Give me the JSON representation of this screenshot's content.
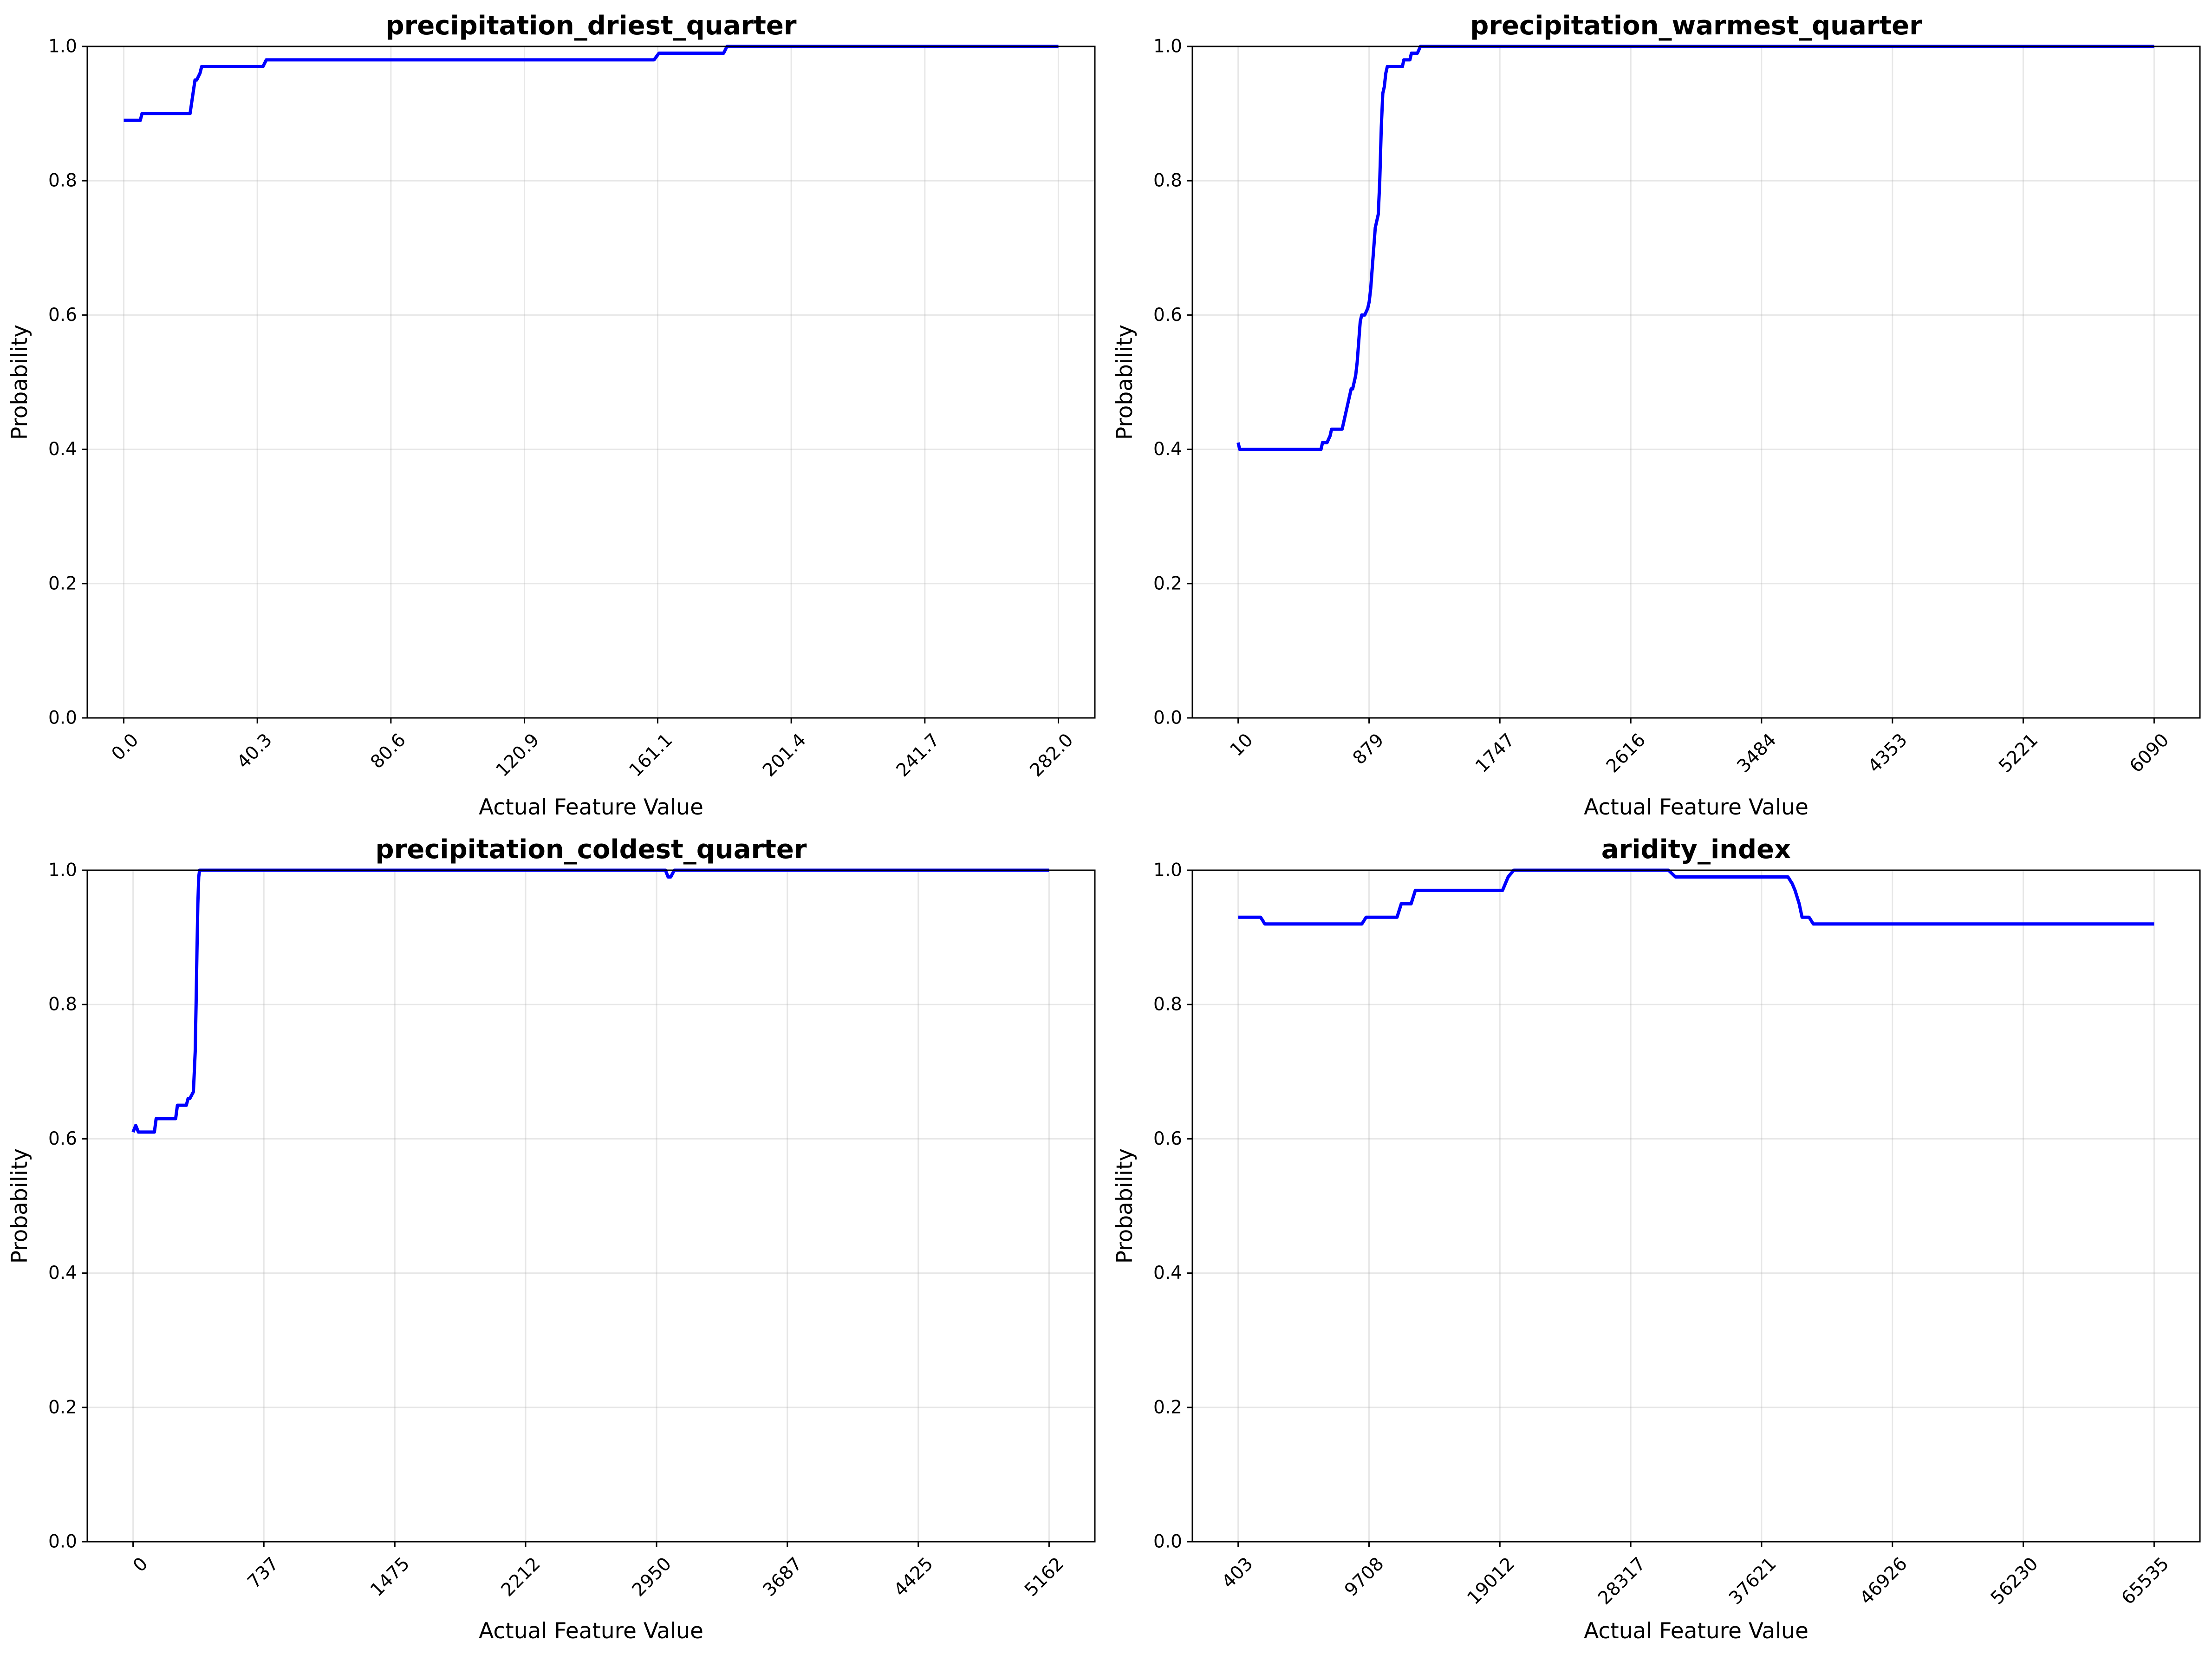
{
  "chart_data": [
    {
      "type": "line",
      "title": "precipitation_driest_quarter",
      "xlabel": "Actual Feature Value",
      "ylabel": "Probability",
      "xlim": [
        -11,
        293
      ],
      "ylim": [
        0,
        1
      ],
      "xticks": [
        0,
        40.3,
        80.6,
        120.9,
        161.1,
        201.4,
        241.7,
        282.0
      ],
      "xtick_labels": [
        "0.0",
        "40.3",
        "80.6",
        "120.9",
        "161.1",
        "201.4",
        "241.7",
        "282.0"
      ],
      "yticks": [
        0,
        0.2,
        0.4,
        0.6,
        0.8,
        1.0
      ],
      "ytick_labels": [
        "0.0",
        "0.2",
        "0.4",
        "0.6",
        "0.8",
        "1.0"
      ],
      "grid": true,
      "color": "#0000ff",
      "x": [
        0,
        5,
        5.5,
        20,
        21.5,
        22,
        23,
        23.5,
        42,
        43,
        160,
        161.5,
        181,
        182,
        282
      ],
      "y": [
        0.89,
        0.89,
        0.9,
        0.9,
        0.95,
        0.95,
        0.96,
        0.97,
        0.97,
        0.98,
        0.98,
        0.99,
        0.99,
        1.0,
        1.0
      ]
    },
    {
      "type": "line",
      "title": "precipitation_warmest_quarter",
      "xlabel": "Actual Feature Value",
      "ylabel": "Probability",
      "xlim": [
        -294,
        6394
      ],
      "ylim": [
        0,
        1
      ],
      "xticks": [
        10,
        879,
        1747,
        2616,
        3484,
        4353,
        5221,
        6090
      ],
      "xtick_labels": [
        "10",
        "879",
        "1747",
        "2616",
        "3484",
        "4353",
        "5221",
        "6090"
      ],
      "yticks": [
        0,
        0.2,
        0.4,
        0.6,
        0.8,
        1.0
      ],
      "ytick_labels": [
        "0.0",
        "0.2",
        "0.4",
        "0.6",
        "0.8",
        "1.0"
      ],
      "grid": true,
      "color": "#0000ff",
      "x": [
        10,
        20,
        30,
        560,
        570,
        600,
        620,
        630,
        700,
        710,
        740,
        760,
        770,
        790,
        800,
        820,
        830,
        850,
        870,
        880,
        890,
        900,
        920,
        940,
        950,
        960,
        970,
        980,
        990,
        1000,
        1010,
        1020,
        1100,
        1110,
        1150,
        1160,
        1190,
        1200,
        1220,
        1240,
        6090
      ],
      "y": [
        0.41,
        0.4,
        0.4,
        0.4,
        0.41,
        0.41,
        0.42,
        0.43,
        0.43,
        0.44,
        0.47,
        0.49,
        0.49,
        0.51,
        0.53,
        0.59,
        0.6,
        0.6,
        0.61,
        0.62,
        0.64,
        0.67,
        0.73,
        0.75,
        0.8,
        0.88,
        0.93,
        0.94,
        0.96,
        0.97,
        0.97,
        0.97,
        0.97,
        0.98,
        0.98,
        0.99,
        0.99,
        0.99,
        1.0,
        1.0,
        1.0
      ]
    },
    {
      "type": "line",
      "title": "precipitation_coldest_quarter",
      "xlabel": "Actual Feature Value",
      "ylabel": "Probability",
      "xlim": [
        -258,
        5420
      ],
      "ylim": [
        0,
        1
      ],
      "xticks": [
        0,
        737,
        1475,
        2212,
        2950,
        3687,
        4425,
        5162
      ],
      "xtick_labels": [
        "0",
        "737",
        "1475",
        "2212",
        "2950",
        "3687",
        "4425",
        "5162"
      ],
      "yticks": [
        0,
        0.2,
        0.4,
        0.6,
        0.8,
        1.0
      ],
      "ytick_labels": [
        "0.0",
        "0.2",
        "0.4",
        "0.6",
        "0.8",
        "1.0"
      ],
      "grid": true,
      "color": "#0000ff",
      "x": [
        0,
        15,
        30,
        120,
        130,
        240,
        250,
        300,
        310,
        320,
        340,
        345,
        350,
        355,
        360,
        365,
        370,
        375,
        3000,
        3015,
        3030,
        3050,
        3070,
        5162
      ],
      "y": [
        0.61,
        0.62,
        0.61,
        0.61,
        0.63,
        0.63,
        0.65,
        0.65,
        0.66,
        0.66,
        0.67,
        0.7,
        0.73,
        0.8,
        0.88,
        0.95,
        0.99,
        1.0,
        1.0,
        0.99,
        0.99,
        1.0,
        1.0,
        1.0
      ]
    },
    {
      "type": "line",
      "title": "aridity_index",
      "xlabel": "Actual Feature Value",
      "ylabel": "Probability",
      "xlim": [
        -2854,
        68792
      ],
      "ylim": [
        0,
        1
      ],
      "xticks": [
        403,
        9708,
        19012,
        28317,
        37621,
        46926,
        56230,
        65535
      ],
      "xtick_labels": [
        "403",
        "9708",
        "19012",
        "28317",
        "37621",
        "46926",
        "56230",
        "65535"
      ],
      "yticks": [
        0,
        0.2,
        0.4,
        0.6,
        0.8,
        1.0
      ],
      "ytick_labels": [
        "0.0",
        "0.2",
        "0.4",
        "0.6",
        "0.8",
        "1.0"
      ],
      "grid": true,
      "color": "#0000ff",
      "x": [
        403,
        2000,
        2300,
        9200,
        9500,
        11700,
        12000,
        12700,
        13000,
        19200,
        19600,
        20000,
        31000,
        31500,
        39500,
        39800,
        40000,
        40300,
        40500,
        41000,
        41300,
        65535
      ],
      "y": [
        0.93,
        0.93,
        0.92,
        0.92,
        0.93,
        0.93,
        0.95,
        0.95,
        0.97,
        0.97,
        0.99,
        1.0,
        1.0,
        0.99,
        0.99,
        0.98,
        0.97,
        0.95,
        0.93,
        0.93,
        0.92,
        0.92
      ]
    }
  ]
}
